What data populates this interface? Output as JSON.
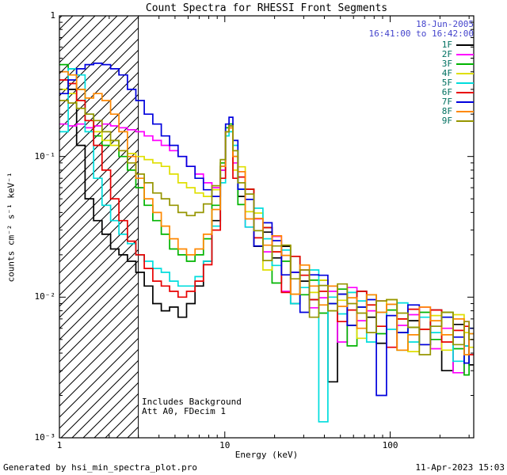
{
  "header": {
    "date": "18-Jun-2005",
    "time_range": "16:41:00 to 16:42:00"
  },
  "axes": {
    "xlabel": "Energy (keV)",
    "ylabel_display": "counts cm⁻² s⁻¹ keV⁻¹",
    "x_tick_values": [
      1,
      10,
      100
    ],
    "x_tick_labels": [
      "1",
      "10",
      "100"
    ],
    "y_tick_values": [
      1,
      0.1,
      0.01,
      0.001
    ],
    "y_tick_labels": [
      "1",
      "10⁻¹",
      "10⁻²",
      "10⁻³"
    ]
  },
  "annotations": {
    "background_note": "Includes Background",
    "attenuator_note": "Att A0, FDecim 1"
  },
  "footer": {
    "generator": "Generated by hsi_min_spectra_plot.pro",
    "timestamp": "11-Apr-2023 15:03"
  },
  "colors": {
    "frame": "#000000",
    "background": "#ffffff",
    "legend_label_text": "#007060",
    "header_text": "#4444cc"
  },
  "chart_data": {
    "type": "line",
    "step": true,
    "title": "Count Spectra for RHESSI Front Segments",
    "xlabel": "Energy (keV)",
    "ylabel": "counts cm-2 s-1 keV-1",
    "xscale": "log",
    "yscale": "log",
    "xlim": [
      1,
      320
    ],
    "ylim": [
      0.001,
      1
    ],
    "grid": false,
    "legend_position": "top-right",
    "hatched_region_x": [
      1,
      3
    ],
    "x": [
      1.0,
      1.13,
      1.27,
      1.43,
      1.61,
      1.81,
      2.04,
      2.29,
      2.58,
      2.9,
      3.26,
      3.67,
      4.13,
      4.64,
      5.22,
      5.87,
      6.61,
      7.43,
      8.36,
      9.4,
      10.1,
      10.6,
      11.2,
      12.0,
      13.3,
      15.0,
      17.0,
      19.3,
      22.0,
      25.0,
      28.5,
      32.5,
      37.0,
      42.0,
      48.0,
      55.0,
      63.0,
      72.0,
      82.5,
      95.0,
      110,
      128,
      150,
      175,
      205,
      240,
      280,
      300
    ],
    "series": [
      {
        "name": "1F",
        "color": "#000000",
        "values": [
          0.4,
          0.3,
          0.12,
          0.05,
          0.035,
          0.028,
          0.022,
          0.02,
          0.018,
          0.015,
          0.012,
          0.009,
          0.008,
          0.0085,
          0.0072,
          0.009,
          0.012,
          0.018,
          0.035,
          0.08,
          0.15,
          0.17,
          0.1,
          0.052,
          0.054,
          0.023,
          0.029,
          0.019,
          0.023,
          0.009,
          0.013,
          0.0096,
          0.0132,
          0.0025,
          0.0105,
          0.0063,
          0.011,
          0.0072,
          0.0047,
          0.0089,
          0.0056,
          0.0068,
          0.0046,
          0.0081,
          0.003,
          0.0064,
          0.0045,
          0.0033
        ]
      },
      {
        "name": "2F",
        "color": "#ff00ff",
        "values": [
          0.17,
          0.165,
          0.17,
          0.16,
          0.165,
          0.17,
          0.165,
          0.16,
          0.155,
          0.15,
          0.14,
          0.13,
          0.12,
          0.11,
          0.1,
          0.085,
          0.075,
          0.065,
          0.06,
          0.08,
          0.15,
          0.165,
          0.09,
          0.078,
          0.0315,
          0.036,
          0.021,
          0.027,
          0.011,
          0.015,
          0.0156,
          0.0084,
          0.0099,
          0.011,
          0.0048,
          0.0117,
          0.0068,
          0.008,
          0.0094,
          0.0044,
          0.0063,
          0.0075,
          0.0085,
          0.0043,
          0.006,
          0.0029,
          0.0067,
          0.005
        ]
      },
      {
        "name": "3F",
        "color": "#00b400",
        "values": [
          0.45,
          0.42,
          0.3,
          0.2,
          0.14,
          0.12,
          0.13,
          0.1,
          0.08,
          0.06,
          0.045,
          0.035,
          0.028,
          0.022,
          0.02,
          0.018,
          0.02,
          0.026,
          0.045,
          0.09,
          0.16,
          0.17,
          0.11,
          0.0455,
          0.0585,
          0.0297,
          0.0312,
          0.0126,
          0.018,
          0.0195,
          0.0104,
          0.0132,
          0.0077,
          0.009,
          0.0114,
          0.0045,
          0.0085,
          0.0104,
          0.0055,
          0.0081,
          0.0042,
          0.0061,
          0.0078,
          0.005,
          0.0078,
          0.0043,
          0.0028,
          0.006
        ]
      },
      {
        "name": "4F",
        "color": "#dfdf00",
        "values": [
          0.3,
          0.28,
          0.22,
          0.18,
          0.15,
          0.13,
          0.12,
          0.11,
          0.105,
          0.1,
          0.095,
          0.09,
          0.085,
          0.075,
          0.065,
          0.06,
          0.055,
          0.052,
          0.058,
          0.085,
          0.15,
          0.16,
          0.08,
          0.0845,
          0.0405,
          0.0396,
          0.0156,
          0.021,
          0.0234,
          0.0105,
          0.0143,
          0.0108,
          0.0132,
          0.008,
          0.0095,
          0.0108,
          0.0051,
          0.0088,
          0.0062,
          0.0096,
          0.007,
          0.0041,
          0.0059,
          0.0074,
          0.0042,
          0.0075,
          0.0056,
          0.0044
        ]
      },
      {
        "name": "5F",
        "color": "#00dddd",
        "values": [
          0.15,
          0.42,
          0.38,
          0.15,
          0.07,
          0.045,
          0.035,
          0.028,
          0.024,
          0.02,
          0.018,
          0.016,
          0.015,
          0.013,
          0.012,
          0.012,
          0.014,
          0.018,
          0.032,
          0.065,
          0.14,
          0.15,
          0.12,
          0.0585,
          0.0315,
          0.0429,
          0.026,
          0.0168,
          0.0216,
          0.009,
          0.0117,
          0.0156,
          0.0013,
          0.01,
          0.0076,
          0.0108,
          0.0094,
          0.0048,
          0.0078,
          0.0059,
          0.0091,
          0.0048,
          0.0072,
          0.0056,
          0.0072,
          0.0035,
          0.0045,
          0.0055
        ]
      },
      {
        "name": "6F",
        "color": "#e80000",
        "values": [
          0.35,
          0.33,
          0.25,
          0.18,
          0.12,
          0.08,
          0.05,
          0.035,
          0.025,
          0.02,
          0.016,
          0.013,
          0.012,
          0.011,
          0.01,
          0.011,
          0.013,
          0.017,
          0.03,
          0.07,
          0.15,
          0.16,
          0.07,
          0.0715,
          0.0585,
          0.0264,
          0.0312,
          0.021,
          0.0108,
          0.0195,
          0.0143,
          0.0096,
          0.011,
          0.012,
          0.0067,
          0.0081,
          0.011,
          0.0088,
          0.0062,
          0.0044,
          0.007,
          0.0082,
          0.0059,
          0.0081,
          0.0048,
          0.0058,
          0.0062,
          0.0039
        ]
      },
      {
        "name": "7F",
        "color": "#0000dd",
        "values": [
          0.28,
          0.35,
          0.42,
          0.45,
          0.46,
          0.45,
          0.42,
          0.38,
          0.3,
          0.25,
          0.2,
          0.17,
          0.14,
          0.12,
          0.1,
          0.085,
          0.07,
          0.058,
          0.052,
          0.085,
          0.17,
          0.19,
          0.13,
          0.0585,
          0.0495,
          0.0231,
          0.0338,
          0.0252,
          0.0144,
          0.015,
          0.0078,
          0.0144,
          0.0143,
          0.009,
          0.0105,
          0.0063,
          0.0085,
          0.0096,
          0.002,
          0.0074,
          0.0056,
          0.0088,
          0.0046,
          0.0062,
          0.0072,
          0.0052,
          0.0034,
          0.006
        ]
      },
      {
        "name": "8F",
        "color": "#ff8800",
        "values": [
          0.4,
          0.38,
          0.3,
          0.26,
          0.28,
          0.25,
          0.2,
          0.15,
          0.1,
          0.07,
          0.05,
          0.04,
          0.032,
          0.026,
          0.022,
          0.02,
          0.022,
          0.028,
          0.042,
          0.085,
          0.15,
          0.16,
          0.1,
          0.078,
          0.036,
          0.0363,
          0.0234,
          0.0273,
          0.0198,
          0.0105,
          0.0169,
          0.012,
          0.0088,
          0.012,
          0.0086,
          0.0099,
          0.006,
          0.0104,
          0.0078,
          0.0089,
          0.0042,
          0.0054,
          0.0085,
          0.0068,
          0.0054,
          0.007,
          0.0039,
          0.0055
        ]
      },
      {
        "name": "9F",
        "color": "#969600",
        "values": [
          0.25,
          0.24,
          0.22,
          0.2,
          0.18,
          0.15,
          0.13,
          0.11,
          0.09,
          0.075,
          0.065,
          0.055,
          0.05,
          0.045,
          0.04,
          0.038,
          0.04,
          0.046,
          0.062,
          0.095,
          0.15,
          0.165,
          0.11,
          0.065,
          0.054,
          0.0297,
          0.0182,
          0.0231,
          0.0234,
          0.0135,
          0.0156,
          0.0072,
          0.0121,
          0.008,
          0.0124,
          0.009,
          0.0077,
          0.0056,
          0.0094,
          0.0096,
          0.0077,
          0.0061,
          0.0039,
          0.0062,
          0.0078,
          0.0046,
          0.0067,
          0.005
        ]
      }
    ]
  }
}
